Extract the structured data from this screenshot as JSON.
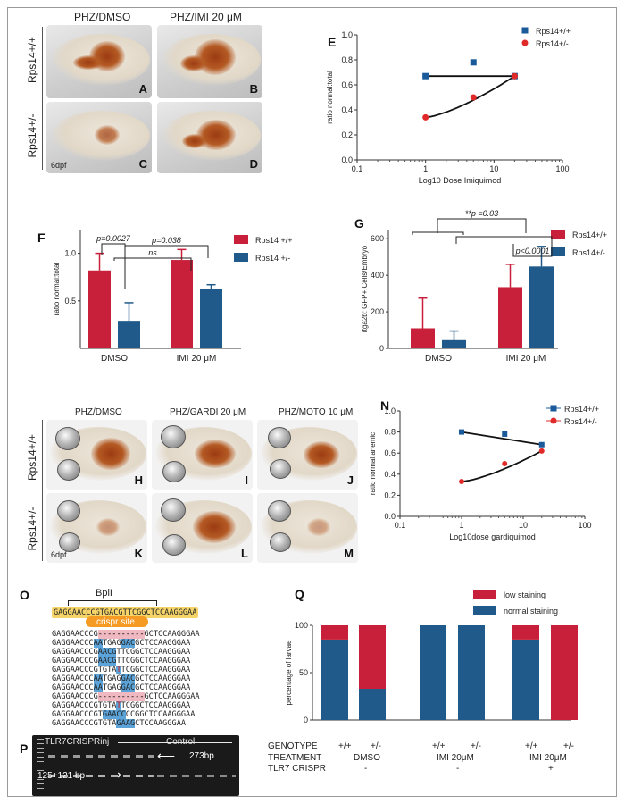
{
  "panelA": {
    "col1": "PHZ/DMSO",
    "col2": "PHZ/IMI 20 μM",
    "row1": "Rps14+/+",
    "row2": "Rps14+/-",
    "letters": [
      "A",
      "B",
      "C",
      "D"
    ],
    "age": "6dpf"
  },
  "panelE": {
    "letter": "E",
    "chart_data": {
      "type": "scatter",
      "xscale": "log",
      "xlim": [
        0.1,
        100
      ],
      "ylim": [
        0.0,
        1.0
      ],
      "xticks": [
        "0.1",
        "1",
        "10",
        "100"
      ],
      "yticks": [
        "0.0",
        "0.2",
        "0.4",
        "0.6",
        "0.8",
        "1.0"
      ],
      "xlabel": "Log10 Dose Imiquimod",
      "ylabel": "ratio normal:total",
      "series": [
        {
          "name": "Rps14+/+",
          "color": "#1a5a9a",
          "marker": "square",
          "x": [
            1,
            5,
            20
          ],
          "y": [
            0.67,
            0.78,
            0.67
          ]
        },
        {
          "name": "Rps14+/-",
          "color": "#e02a2a",
          "marker": "circle",
          "x": [
            1,
            5,
            20
          ],
          "y": [
            0.34,
            0.5,
            0.67
          ]
        }
      ]
    }
  },
  "panelF": {
    "letter": "F",
    "chart_data": {
      "type": "bar",
      "categories": [
        "DMSO",
        "IMI 20 μM"
      ],
      "ylabel": "ratio normal:total",
      "ylim": [
        0.0,
        1.25
      ],
      "yticks": [
        "0.5",
        "1.0"
      ],
      "series": [
        {
          "name": "Rps14 +/+",
          "color": "#c8203a",
          "values": [
            0.82,
            0.93
          ],
          "err": [
            0.18,
            0.11
          ]
        },
        {
          "name": "Rps14 +/-",
          "color": "#1f5a8a",
          "values": [
            0.29,
            0.63
          ],
          "err": [
            0.19,
            0.04
          ]
        }
      ],
      "annotations": [
        "p=0.0027",
        "p=0.038",
        "ns"
      ]
    }
  },
  "panelG": {
    "letter": "G",
    "chart_data": {
      "type": "bar",
      "categories": [
        "DMSO",
        "IMI 20 μM"
      ],
      "ylabel": "itga2b: GFP+ Cells/Embryo",
      "ylim": [
        0,
        650
      ],
      "yticks": [
        "0",
        "200",
        "400",
        "600"
      ],
      "series": [
        {
          "name": "Rps14+/+",
          "color": "#c8203a",
          "values": [
            110,
            335
          ],
          "err": [
            165,
            125
          ]
        },
        {
          "name": "Rps14+/-",
          "color": "#1f5a8a",
          "values": [
            45,
            448
          ],
          "err": [
            50,
            110
          ]
        }
      ],
      "annotations": [
        "**p =0.03",
        "p<0.0001"
      ]
    }
  },
  "panelH": {
    "col1": "PHZ/DMSO",
    "col2": "PHZ/GARDI 20 μM",
    "col3": "PHZ/MOTO 10 μM",
    "row1": "Rps14+/+",
    "row2": "Rps14+/-",
    "letters": [
      "H",
      "I",
      "J",
      "K",
      "L",
      "M"
    ],
    "age": "6dpf"
  },
  "panelN": {
    "letter": "N",
    "chart_data": {
      "type": "scatter",
      "xscale": "log",
      "xlim": [
        0.1,
        100
      ],
      "ylim": [
        0.0,
        1.0
      ],
      "xticks": [
        "0.1",
        "1",
        "10",
        "100"
      ],
      "yticks": [
        "0.0",
        "0.2",
        "0.4",
        "0.6",
        "0.8",
        "1.0"
      ],
      "xlabel": "Log10dose gardiquimod",
      "ylabel": "ratio normal:anemic",
      "series": [
        {
          "name": "Rps14+/+",
          "color": "#1a5a9a",
          "marker": "square",
          "x": [
            1,
            5,
            20
          ],
          "y": [
            0.8,
            0.78,
            0.68
          ]
        },
        {
          "name": "Rps14+/-",
          "color": "#e02a2a",
          "marker": "circle",
          "x": [
            1,
            5,
            20
          ],
          "y": [
            0.33,
            0.5,
            0.62
          ]
        }
      ]
    }
  },
  "panelO": {
    "letter": "O",
    "enzyme": "BplI",
    "site": "crispr site",
    "ref": "GAGGAACCCGTGACGTTCGGCTCCAAGGGAA",
    "seqs": [
      [
        [
          "GAGGAACCCG",
          ""
        ],
        [
          "----------",
          "p"
        ],
        [
          "GCTCCAAGGGAA",
          ""
        ]
      ],
      [
        [
          "GAGGAACCC",
          ""
        ],
        [
          "AA",
          "b"
        ],
        [
          "TGAG",
          ""
        ],
        [
          "GAC",
          "b"
        ],
        [
          "GCTCCAAGGGAA",
          ""
        ]
      ],
      [
        [
          "GAGGAACCCG",
          ""
        ],
        [
          "AACG",
          "b"
        ],
        [
          "TTCGGCTCCAAGGGAA",
          ""
        ]
      ],
      [
        [
          "GAGGAACCCG",
          ""
        ],
        [
          "AACG",
          "b"
        ],
        [
          "TTCGGCTCCAAGGGAA",
          ""
        ]
      ],
      [
        [
          "GAGGAACCCGTGTA",
          ""
        ],
        [
          "T",
          "r"
        ],
        [
          "TCGGCTCCAAGGGAA",
          ""
        ]
      ],
      [
        [
          "GAGGAACCC",
          ""
        ],
        [
          "AA",
          "b"
        ],
        [
          "TGAG",
          ""
        ],
        [
          "GAC",
          "b"
        ],
        [
          "GCTCCAAGGGAA",
          ""
        ]
      ],
      [
        [
          "GAGGAACCC",
          ""
        ],
        [
          "AA",
          "b"
        ],
        [
          "TGAG",
          ""
        ],
        [
          "GAC",
          "b"
        ],
        [
          "GCTCCAAGGGAA",
          ""
        ]
      ],
      [
        [
          "GAGGAACCCG",
          ""
        ],
        [
          "----------",
          "p"
        ],
        [
          "GCTCCAAGGGAA",
          ""
        ]
      ],
      [
        [
          "GAGGAACCCGTGTA",
          ""
        ],
        [
          "T",
          "r"
        ],
        [
          "TCGGCTCCAAGGGAA",
          ""
        ]
      ],
      [
        [
          "GAGGAACCCGT",
          ""
        ],
        [
          "GAACC",
          "b"
        ],
        [
          "CCGGCTCCAAGGGAA",
          ""
        ]
      ],
      [
        [
          "GAGGAACCCGTGTA",
          ""
        ],
        [
          "GAAG",
          "b"
        ],
        [
          "CTCCAAGGGAA",
          ""
        ]
      ]
    ]
  },
  "panelP": {
    "letter": "P",
    "lane1": "TLR7CRISPRinj",
    "lane2": "Control",
    "band1": "273bp",
    "band2": "125+121 bp"
  },
  "panelQ": {
    "letter": "Q",
    "chart_data": {
      "type": "bar",
      "stacked": true,
      "ylabel": "percentage of larvae",
      "ylim": [
        0,
        100
      ],
      "yticks": [
        "0",
        "50",
        "100"
      ],
      "groups": [
        {
          "genotype": "+/+",
          "treatment": "DMSO",
          "tlr7": "-"
        },
        {
          "genotype": "+/-",
          "treatment": "DMSO",
          "tlr7": "-"
        },
        {
          "genotype": "+/+",
          "treatment": "IMI 20μM",
          "tlr7": "-"
        },
        {
          "genotype": "+/-",
          "treatment": "IMI 20μM",
          "tlr7": "-"
        },
        {
          "genotype": "+/+",
          "treatment": "IMI 20μM",
          "tlr7": "+"
        },
        {
          "genotype": "+/-",
          "treatment": "IMI 20μM",
          "tlr7": "+"
        }
      ],
      "series": [
        {
          "name": "normal staining",
          "color": "#1f5a8a",
          "values": [
            85,
            33,
            100,
            100,
            85,
            0
          ]
        },
        {
          "name": "low staining",
          "color": "#c8203a",
          "values": [
            15,
            67,
            0,
            0,
            15,
            100
          ]
        }
      ]
    },
    "rowlabels": [
      "GENOTYPE",
      "TREATMENT",
      "TLR7 CRISPR"
    ],
    "genotypes": [
      "+/+",
      "+/-",
      "+/+",
      "+/-",
      "+/+",
      "+/-"
    ],
    "treat1": "DMSO",
    "treat2": "IMI 20μM",
    "treat3": "IMI 20μM",
    "tlr1": "-",
    "tlr2": "-",
    "tlr3": "+"
  }
}
